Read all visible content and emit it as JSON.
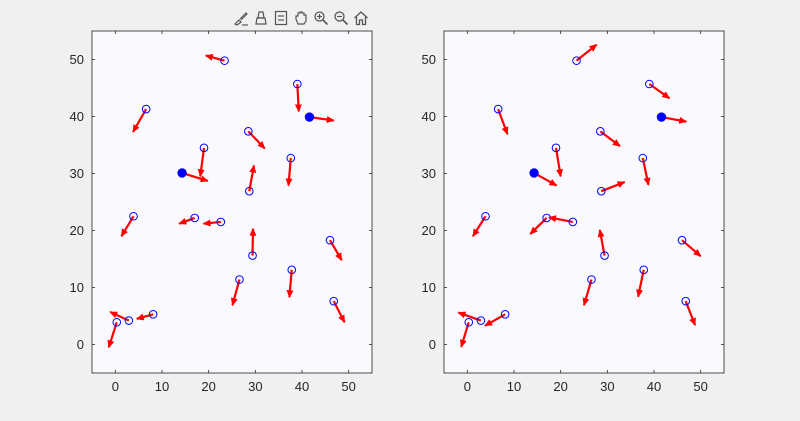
{
  "toolbar": {
    "icons": [
      "brush-icon",
      "data-cursor-icon",
      "legend-icon",
      "pan-icon",
      "zoom-in-icon",
      "zoom-out-icon",
      "home-icon"
    ]
  },
  "colors": {
    "figure_bg": "#f0f0f0",
    "axes_bg": "#fafafe",
    "arrow": "#ff0000",
    "marker": "#0000ff",
    "axis": "#262626",
    "toolbar_icon": "#555555"
  },
  "chart_data": [
    {
      "type": "scatter",
      "subtype": "quiver",
      "title": "",
      "xlabel": "",
      "ylabel": "",
      "xlim": [
        -5,
        55
      ],
      "ylim": [
        -5,
        55
      ],
      "xticks": [
        0,
        10,
        20,
        30,
        40,
        50
      ],
      "yticks": [
        0,
        10,
        20,
        30,
        40,
        50
      ],
      "grid": false,
      "filled_points": [
        {
          "x": 14.3,
          "y": 30.1,
          "u": 5.5,
          "v": -1.4
        },
        {
          "x": 41.6,
          "y": 39.9,
          "u": 5.2,
          "v": -0.6
        }
      ],
      "open_points": [
        {
          "x": 23.4,
          "y": 49.8,
          "u": -4.0,
          "v": 0.9
        },
        {
          "x": 39.0,
          "y": 45.7,
          "u": 0.3,
          "v": -4.8
        },
        {
          "x": 6.6,
          "y": 41.3,
          "u": -2.8,
          "v": -4.0
        },
        {
          "x": 28.5,
          "y": 37.4,
          "u": 3.5,
          "v": -3.0
        },
        {
          "x": 19.0,
          "y": 34.5,
          "u": -0.8,
          "v": -5.0
        },
        {
          "x": 37.6,
          "y": 32.7,
          "u": -0.5,
          "v": -4.8
        },
        {
          "x": 28.7,
          "y": 26.9,
          "u": 1.0,
          "v": 4.5
        },
        {
          "x": 3.9,
          "y": 22.5,
          "u": -2.6,
          "v": -3.5
        },
        {
          "x": 17.0,
          "y": 22.2,
          "u": -3.3,
          "v": -1.0
        },
        {
          "x": 22.6,
          "y": 21.5,
          "u": -3.7,
          "v": -0.3
        },
        {
          "x": 29.4,
          "y": 15.6,
          "u": 0.1,
          "v": 4.7
        },
        {
          "x": 46.0,
          "y": 18.3,
          "u": 2.5,
          "v": -3.5
        },
        {
          "x": 26.6,
          "y": 11.4,
          "u": -1.5,
          "v": -4.5
        },
        {
          "x": 37.8,
          "y": 13.1,
          "u": -0.5,
          "v": -4.8
        },
        {
          "x": 8.1,
          "y": 5.3,
          "u": -3.5,
          "v": -0.8
        },
        {
          "x": 46.8,
          "y": 7.6,
          "u": 2.3,
          "v": -3.7
        },
        {
          "x": 2.9,
          "y": 4.2,
          "u": -4.0,
          "v": 1.5
        },
        {
          "x": 0.3,
          "y": 3.9,
          "u": -1.7,
          "v": -4.4
        }
      ]
    },
    {
      "type": "scatter",
      "subtype": "quiver",
      "title": "",
      "xlabel": "",
      "ylabel": "",
      "xlim": [
        -5,
        55
      ],
      "ylim": [
        -5,
        55
      ],
      "xticks": [
        0,
        10,
        20,
        30,
        40,
        50
      ],
      "yticks": [
        0,
        10,
        20,
        30,
        40,
        50
      ],
      "grid": false,
      "filled_points": [
        {
          "x": 14.3,
          "y": 30.1,
          "u": 4.8,
          "v": -2.2
        },
        {
          "x": 41.6,
          "y": 39.9,
          "u": 5.3,
          "v": -0.8
        }
      ],
      "open_points": [
        {
          "x": 23.4,
          "y": 49.8,
          "u": 4.3,
          "v": 2.8
        },
        {
          "x": 39.0,
          "y": 45.7,
          "u": 4.3,
          "v": -2.5
        },
        {
          "x": 6.6,
          "y": 41.3,
          "u": 2.0,
          "v": -4.4
        },
        {
          "x": 28.5,
          "y": 37.4,
          "u": 4.2,
          "v": -2.6
        },
        {
          "x": 19.0,
          "y": 34.5,
          "u": 1.0,
          "v": -5.0
        },
        {
          "x": 37.6,
          "y": 32.7,
          "u": 1.2,
          "v": -4.7
        },
        {
          "x": 28.7,
          "y": 26.9,
          "u": 5.0,
          "v": 1.6
        },
        {
          "x": 3.9,
          "y": 22.5,
          "u": -2.7,
          "v": -3.5
        },
        {
          "x": 17.0,
          "y": 22.2,
          "u": -3.5,
          "v": -2.8
        },
        {
          "x": 22.6,
          "y": 21.5,
          "u": -5.1,
          "v": 0.8
        },
        {
          "x": 29.4,
          "y": 15.6,
          "u": -1.0,
          "v": 4.5
        },
        {
          "x": 46.0,
          "y": 18.3,
          "u": 4.0,
          "v": -2.8
        },
        {
          "x": 26.6,
          "y": 11.4,
          "u": -1.6,
          "v": -4.5
        },
        {
          "x": 37.8,
          "y": 13.1,
          "u": -1.2,
          "v": -4.7
        },
        {
          "x": 8.1,
          "y": 5.3,
          "u": -4.3,
          "v": -2.0
        },
        {
          "x": 46.8,
          "y": 7.6,
          "u": 2.0,
          "v": -4.2
        },
        {
          "x": 2.9,
          "y": 4.2,
          "u": -4.8,
          "v": 1.4
        },
        {
          "x": 0.3,
          "y": 3.9,
          "u": -1.6,
          "v": -4.3
        }
      ]
    }
  ]
}
